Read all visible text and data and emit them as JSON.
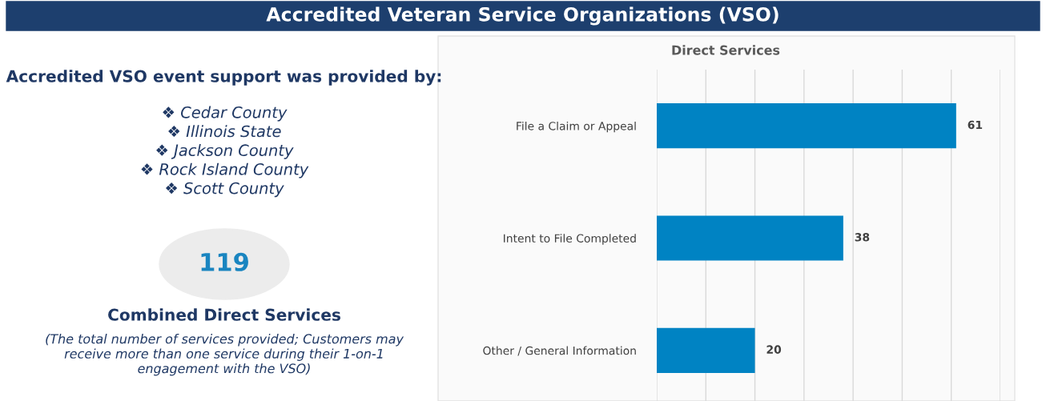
{
  "chart_data": [
    {
      "type": "other",
      "title": "Accredited VSO event support was provided by:",
      "annotations": [
        "Accredited Veteran Service Organizations (VSO)",
        "❖ Cedar County",
        "❖ Illinois State",
        "❖ Jackson County",
        "❖ Rock Island County",
        "❖ Scott County",
        "119",
        "Combined Direct Services",
        "(The total number of services provided; Customers may receive more than one service during their 1-on-1 engagement with the VSO)"
      ]
    },
    {
      "type": "bar",
      "orientation": "horizontal",
      "title": "Direct Services",
      "categories": [
        "File a Claim or Appeal",
        "Intent to File Completed",
        "Other / General Information"
      ],
      "values": [
        61,
        38,
        20
      ],
      "color": "#0083c3",
      "data_labels": true,
      "xlim": [
        0,
        70
      ],
      "xticks": [
        {
          "value": 0,
          "label": null
        },
        {
          "value": 10,
          "label": null
        },
        {
          "value": 20,
          "label": null
        },
        {
          "value": 30,
          "label": null
        },
        {
          "value": 40,
          "label": null
        },
        {
          "value": 50,
          "label": null
        },
        {
          "value": 60,
          "label": null
        },
        {
          "value": 70,
          "label": null
        }
      ],
      "grid": "x",
      "tick_labels": "y"
    }
  ]
}
